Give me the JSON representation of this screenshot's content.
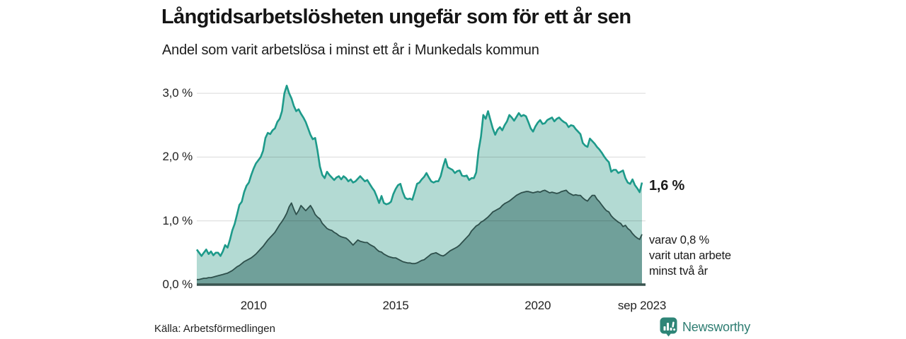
{
  "header": {
    "title": "Långtidsarbetslösheten ungefär som för ett år sen",
    "subtitle": "Andel som varit arbetslösa i minst ett år i Munkedals kommun"
  },
  "footer": {
    "source": "Källa: Arbetsförmedlingen",
    "brand": "Newsworthy"
  },
  "annotations": {
    "total_end_label": "1,6 %",
    "subset_end_label_lines": [
      "varav 0,8 %",
      "varit utan arbete",
      "minst två år"
    ]
  },
  "colors": {
    "line_total": "#1d9a8a",
    "fill_total": "#b3dad3",
    "line_subset": "#2e4f4b",
    "fill_subset": "#70a09a",
    "gridline": "rgba(0,0,0,0.15)",
    "axis_line": "#3a5450",
    "brand_teal": "#2e7d72"
  },
  "chart_data": {
    "type": "area",
    "title": "Långtidsarbetslösheten ungefär som för ett år sen",
    "subtitle": "Andel som varit arbetslösa i minst ett år i Munkedals kommun",
    "x_unit": "month",
    "x_start": "2008-01",
    "x_end": "2023-09",
    "x_start_year": 2008.0,
    "x_end_year": 2023.6667,
    "ylim": [
      0,
      3.2
    ],
    "grid": true,
    "legend_position": "none",
    "yticks": [
      {
        "label": "0,0 %",
        "value": 0
      },
      {
        "label": "1,0 %",
        "value": 1
      },
      {
        "label": "2,0 %",
        "value": 2
      },
      {
        "label": "3,0 %",
        "value": 3
      }
    ],
    "xticks": [
      {
        "label": "2010",
        "year": 2010
      },
      {
        "label": "2015",
        "year": 2015
      },
      {
        "label": "2020",
        "year": 2020
      },
      {
        "label": "sep 2023",
        "year": 2023.6667
      }
    ],
    "series": [
      {
        "name": "Andel arbetslösa minst ett år",
        "end_value": 1.6,
        "values": [
          0.55,
          0.5,
          0.45,
          0.5,
          0.55,
          0.48,
          0.52,
          0.46,
          0.5,
          0.5,
          0.45,
          0.52,
          0.62,
          0.58,
          0.7,
          0.85,
          0.95,
          1.1,
          1.25,
          1.3,
          1.45,
          1.55,
          1.6,
          1.72,
          1.82,
          1.9,
          1.95,
          2.0,
          2.1,
          2.3,
          2.38,
          2.36,
          2.42,
          2.45,
          2.55,
          2.6,
          2.72,
          3.0,
          3.12,
          3.0,
          2.92,
          2.8,
          2.72,
          2.75,
          2.68,
          2.62,
          2.55,
          2.45,
          2.35,
          2.28,
          2.3,
          2.1,
          1.85,
          1.72,
          1.67,
          1.77,
          1.72,
          1.68,
          1.64,
          1.68,
          1.7,
          1.65,
          1.7,
          1.67,
          1.62,
          1.65,
          1.6,
          1.62,
          1.66,
          1.7,
          1.66,
          1.62,
          1.64,
          1.58,
          1.52,
          1.47,
          1.38,
          1.28,
          1.39,
          1.28,
          1.26,
          1.27,
          1.3,
          1.42,
          1.5,
          1.56,
          1.58,
          1.45,
          1.36,
          1.34,
          1.35,
          1.33,
          1.45,
          1.58,
          1.6,
          1.65,
          1.69,
          1.75,
          1.68,
          1.62,
          1.6,
          1.62,
          1.62,
          1.7,
          1.85,
          1.97,
          1.84,
          1.82,
          1.8,
          1.75,
          1.78,
          1.79,
          1.71,
          1.7,
          1.71,
          1.64,
          1.67,
          1.67,
          1.76,
          2.1,
          2.32,
          2.66,
          2.6,
          2.72,
          2.58,
          2.45,
          2.35,
          2.43,
          2.47,
          2.42,
          2.5,
          2.56,
          2.66,
          2.62,
          2.57,
          2.63,
          2.69,
          2.64,
          2.66,
          2.64,
          2.55,
          2.45,
          2.4,
          2.48,
          2.54,
          2.58,
          2.52,
          2.53,
          2.58,
          2.6,
          2.62,
          2.56,
          2.6,
          2.62,
          2.58,
          2.55,
          2.53,
          2.47,
          2.5,
          2.49,
          2.44,
          2.4,
          2.36,
          2.22,
          2.18,
          2.16,
          2.29,
          2.25,
          2.21,
          2.16,
          2.12,
          2.07,
          2.01,
          1.96,
          1.92,
          1.77,
          1.8,
          1.8,
          1.75,
          1.77,
          1.79,
          1.67,
          1.6,
          1.58,
          1.65,
          1.56,
          1.51,
          1.45,
          1.6
        ]
      },
      {
        "name": "varav utan arbete minst två år",
        "end_value": 0.8,
        "values": [
          0.08,
          0.08,
          0.09,
          0.1,
          0.1,
          0.11,
          0.11,
          0.12,
          0.13,
          0.14,
          0.15,
          0.16,
          0.17,
          0.18,
          0.2,
          0.22,
          0.25,
          0.28,
          0.3,
          0.33,
          0.36,
          0.38,
          0.4,
          0.42,
          0.45,
          0.48,
          0.52,
          0.56,
          0.6,
          0.65,
          0.7,
          0.74,
          0.78,
          0.82,
          0.88,
          0.94,
          0.99,
          1.05,
          1.12,
          1.22,
          1.28,
          1.18,
          1.1,
          1.16,
          1.24,
          1.2,
          1.16,
          1.2,
          1.24,
          1.18,
          1.1,
          1.06,
          1.03,
          0.96,
          0.92,
          0.88,
          0.86,
          0.85,
          0.82,
          0.8,
          0.77,
          0.75,
          0.74,
          0.73,
          0.7,
          0.66,
          0.62,
          0.66,
          0.7,
          0.68,
          0.67,
          0.66,
          0.66,
          0.63,
          0.61,
          0.59,
          0.55,
          0.52,
          0.51,
          0.48,
          0.46,
          0.44,
          0.43,
          0.42,
          0.42,
          0.4,
          0.38,
          0.36,
          0.35,
          0.34,
          0.34,
          0.33,
          0.33,
          0.34,
          0.36,
          0.38,
          0.39,
          0.42,
          0.45,
          0.48,
          0.49,
          0.5,
          0.48,
          0.46,
          0.45,
          0.47,
          0.5,
          0.53,
          0.55,
          0.57,
          0.59,
          0.62,
          0.66,
          0.7,
          0.74,
          0.78,
          0.84,
          0.88,
          0.92,
          0.94,
          0.98,
          1.0,
          1.03,
          1.06,
          1.1,
          1.14,
          1.16,
          1.18,
          1.2,
          1.24,
          1.27,
          1.29,
          1.31,
          1.34,
          1.37,
          1.4,
          1.42,
          1.44,
          1.45,
          1.46,
          1.46,
          1.45,
          1.44,
          1.45,
          1.46,
          1.45,
          1.47,
          1.48,
          1.46,
          1.44,
          1.45,
          1.44,
          1.43,
          1.44,
          1.46,
          1.47,
          1.48,
          1.44,
          1.42,
          1.4,
          1.41,
          1.4,
          1.4,
          1.36,
          1.33,
          1.31,
          1.36,
          1.4,
          1.4,
          1.34,
          1.3,
          1.25,
          1.2,
          1.16,
          1.14,
          1.08,
          1.04,
          1.01,
          0.98,
          0.96,
          0.91,
          0.93,
          0.88,
          0.85,
          0.8,
          0.76,
          0.73,
          0.71,
          0.79
        ]
      }
    ]
  }
}
